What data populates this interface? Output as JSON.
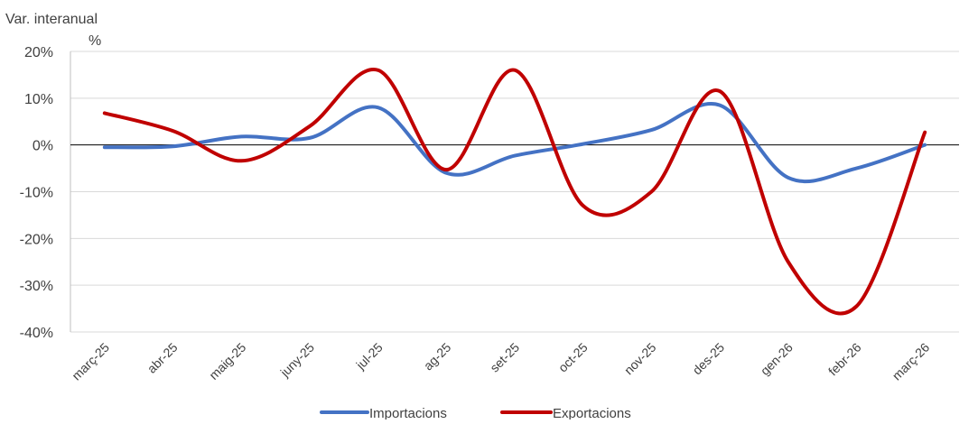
{
  "chart_data": {
    "type": "line",
    "ylabel_line1": "Var. interanual",
    "ylabel_line2": "%",
    "ylim": [
      -40,
      20
    ],
    "ytick_labels": [
      "20%",
      "10%",
      "0%",
      "-10%",
      "-20%",
      "-30%",
      "-40%"
    ],
    "categories": [
      "març-25",
      "abr-25",
      "maig-25",
      "juny-25",
      "jul-25",
      "ag-25",
      "set-25",
      "oct-25",
      "nov-25",
      "des-25",
      "gen-26",
      "febr-26",
      "març-26"
    ],
    "series": [
      {
        "name": "Importacions",
        "color": "#4472C4",
        "values": [
          -0.5,
          -0.3,
          1.8,
          1.5,
          8.0,
          -6.0,
          -2.3,
          0.2,
          3.2,
          8.5,
          -7.0,
          -5.0,
          0.0
        ]
      },
      {
        "name": "Exportacions",
        "color": "#C00000",
        "values": [
          6.8,
          3.0,
          -3.4,
          4.0,
          16.0,
          -5.3,
          16.0,
          -13.0,
          -10.0,
          11.5,
          -25.0,
          -34.5,
          2.7
        ]
      }
    ],
    "grid": true,
    "legend_position": "bottom"
  }
}
